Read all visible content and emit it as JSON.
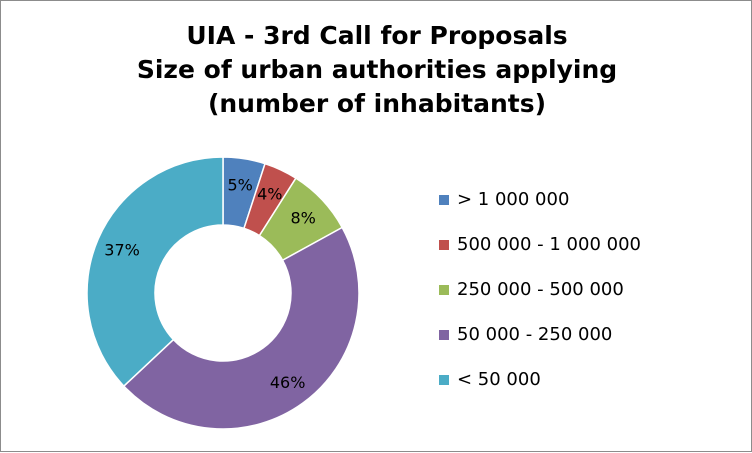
{
  "chart_data": {
    "type": "pie",
    "variant": "doughnut",
    "title_lines": [
      "UIA - 3rd Call for Proposals",
      "Size of urban authorities applying",
      "(number of inhabitants)"
    ],
    "slices": [
      {
        "label": "> 1 000 000",
        "value": 5,
        "display": "5%",
        "color": "#4f81bd"
      },
      {
        "label": "500 000 - 1 000 000",
        "value": 4,
        "display": "4%",
        "color": "#c0504d"
      },
      {
        "label": "250 000 - 500 000",
        "value": 8,
        "display": "8%",
        "color": "#9bbb59"
      },
      {
        "label": "50 000 - 250 000",
        "value": 46,
        "display": "46%",
        "color": "#8064a2"
      },
      {
        "label": "< 50 000",
        "value": 37,
        "display": "37%",
        "color": "#4bacc6"
      }
    ],
    "legend_position": "right"
  }
}
